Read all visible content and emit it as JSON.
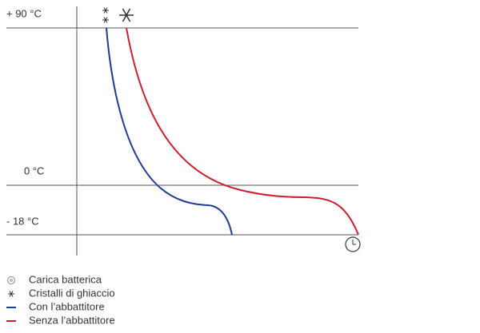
{
  "axis_labels": [
    "+ 90 °C",
    "0 °C",
    "- 18 °C"
  ],
  "legend": [
    "Carica batterica",
    "Cristalli di ghiaccio",
    "Con l’abbattitore",
    "Senza l’abbattitore"
  ]
}
